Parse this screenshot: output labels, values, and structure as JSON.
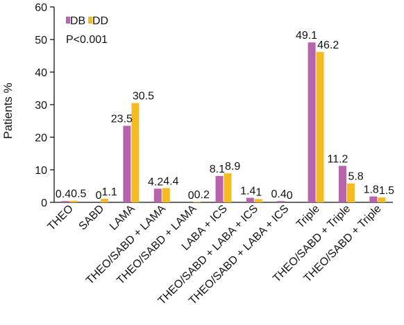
{
  "chart_data": {
    "type": "bar",
    "title": "",
    "xlabel": "",
    "ylabel": "Patients %",
    "ylim": [
      0,
      60
    ],
    "yticks": [
      0,
      10,
      20,
      30,
      40,
      50,
      60
    ],
    "grid": false,
    "legend_position": "top-left",
    "annotation": "P<0.001",
    "categories": [
      "THEO",
      "SABD",
      "LAMA",
      "THEO/SABD + LAMA",
      "THEO/SABD + LAMA",
      "LABA + ICS",
      "THEO/SABD + LABA + ICS",
      "THEO/SABD + LABA + ICS",
      "Triple",
      "THEO/SABD + Triple",
      "THEO/SABD + Triple"
    ],
    "series": [
      {
        "name": "DB",
        "color": "#b864ac",
        "values": [
          0.4,
          0,
          23.5,
          4.2,
          0,
          8.1,
          1.4,
          0.4,
          49.1,
          11.2,
          1.8
        ],
        "labels": [
          "0.4",
          "0",
          "23.5",
          "4.2",
          "0",
          "8.1",
          "1.4",
          "0.4",
          "49.1",
          "11.2",
          "1.8"
        ]
      },
      {
        "name": "DD",
        "color": "#f5bb22",
        "values": [
          0.5,
          1.1,
          30.5,
          4.4,
          0.2,
          8.9,
          1,
          0,
          46.2,
          5.8,
          1.5
        ],
        "labels": [
          "0.5",
          "1.1",
          "30.5",
          "4.4",
          "0.2",
          "8.9",
          "1",
          "0",
          "46.2",
          "5.8",
          "1.5"
        ]
      }
    ]
  }
}
